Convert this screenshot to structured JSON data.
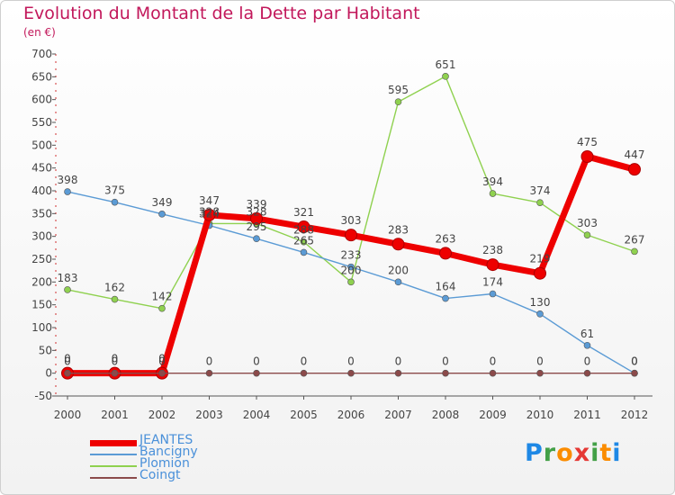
{
  "title": "Evolution du Montant de la Dette par Habitant",
  "subtitle": "(en €)",
  "logo": {
    "text": "Proxiti",
    "letters": [
      "P",
      "r",
      "o",
      "x",
      "i",
      "t",
      "i"
    ],
    "colors": [
      "#1e88e5",
      "#43a047",
      "#fb8c00",
      "#e53935",
      "#43a047",
      "#fb8c00",
      "#1e88e5"
    ]
  },
  "chart_data": {
    "type": "line",
    "title": "Evolution du Montant de la Dette par Habitant",
    "subtitle": "(en €)",
    "x": [
      "2000",
      "2001",
      "2002",
      "2003",
      "2004",
      "2005",
      "2006",
      "2007",
      "2008",
      "2009",
      "2010",
      "2011",
      "2012"
    ],
    "ylim": [
      -50,
      700
    ],
    "yticks": [
      -50,
      0,
      50,
      100,
      150,
      200,
      250,
      300,
      350,
      400,
      450,
      500,
      550,
      600,
      650,
      700
    ],
    "grid": false,
    "legend_position": "bottom-left",
    "series": [
      {
        "name": "JEANTES",
        "color": "#ee0000",
        "values": [
          0,
          0,
          0,
          347,
          339,
          321,
          303,
          283,
          263,
          238,
          219,
          475,
          447
        ],
        "labels": [
          "0",
          "0",
          "0",
          "347",
          "339",
          "321",
          "303",
          "283",
          "263",
          "238",
          "219",
          "475",
          "447"
        ]
      },
      {
        "name": "Bancigny",
        "color": "#5b9bd5",
        "values": [
          398,
          375,
          349,
          324,
          295,
          265,
          233,
          200,
          164,
          174,
          130,
          61,
          0
        ],
        "labels": [
          "398",
          "375",
          "349",
          "324",
          "295",
          "265",
          "233",
          "200",
          "164",
          "174",
          "130",
          "61",
          "0"
        ]
      },
      {
        "name": "Plomion",
        "color": "#8fd14f",
        "values": [
          183,
          162,
          142,
          328,
          328,
          288,
          200,
          595,
          651,
          394,
          374,
          303,
          267
        ],
        "labels": [
          "183",
          "162",
          "142",
          "328",
          "328",
          "288",
          "200",
          "595",
          "651",
          "394",
          "374",
          "303",
          "267"
        ]
      },
      {
        "name": "Coingt",
        "color": "#8b4a4a",
        "values": [
          0,
          0,
          0,
          0,
          0,
          0,
          0,
          0,
          0,
          0,
          0,
          0,
          0
        ],
        "labels": [
          "0",
          "0",
          "0",
          "0",
          "0",
          "0",
          "0",
          "0",
          "0",
          "0",
          "0",
          "0",
          "0"
        ]
      }
    ]
  }
}
